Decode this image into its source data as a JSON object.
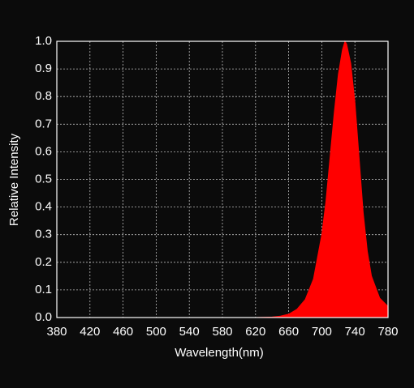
{
  "chart_data": {
    "type": "area",
    "xlabel": "Wavelength(nm)",
    "ylabel": "Relative Intensity",
    "x": [
      380,
      600,
      620,
      640,
      650,
      660,
      670,
      680,
      690,
      700,
      705,
      710,
      715,
      720,
      725,
      728,
      730,
      735,
      740,
      745,
      750,
      755,
      760,
      770,
      780
    ],
    "series": [
      {
        "color": "#ff0000",
        "values": [
          0,
          0,
          0,
          0.002,
          0.005,
          0.012,
          0.03,
          0.065,
          0.14,
          0.3,
          0.42,
          0.58,
          0.74,
          0.88,
          0.97,
          1.0,
          0.99,
          0.92,
          0.78,
          0.58,
          0.38,
          0.24,
          0.15,
          0.07,
          0.04
        ]
      }
    ],
    "xlim": [
      380,
      780
    ],
    "xticks": [
      380,
      420,
      460,
      500,
      540,
      580,
      620,
      660,
      700,
      740,
      780
    ],
    "ylim": [
      0,
      1
    ],
    "yticks": [
      {
        "value": 0,
        "label": "0.0"
      },
      0.1,
      0.2,
      0.3,
      0.4,
      0.5,
      0.6,
      0.7,
      0.8,
      0.9,
      {
        "value": 1,
        "label": "1.0"
      }
    ],
    "grid": true
  }
}
